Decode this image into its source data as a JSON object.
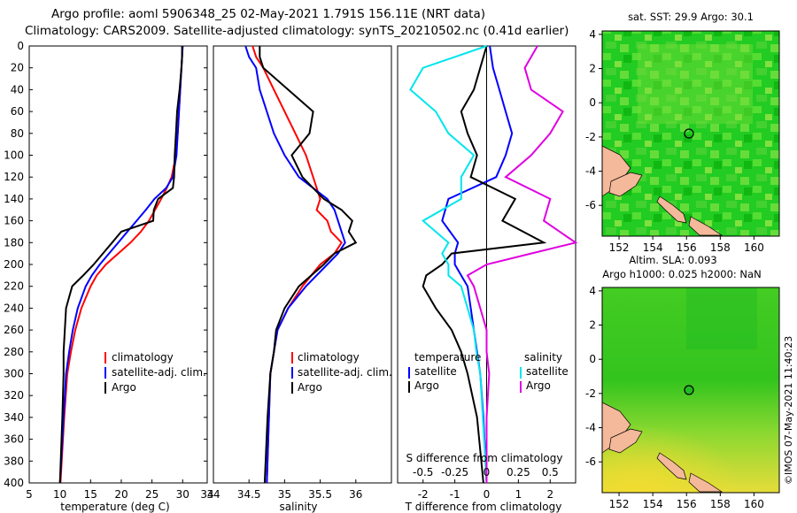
{
  "header": {
    "line1": "Argo profile: aoml 5906348_25 02-May-2021 1.791S 156.11E (NRT data)",
    "line2": "Climatology: CARS2009. Satellite-adjusted climatology: synTS_20210502.nc (0.41d earlier)"
  },
  "footer": {
    "stamp": "©IMOS 07-May-2021 11:40:23"
  },
  "colors": {
    "climatology": "#ff0000",
    "satellite": "#0000ff",
    "argo": "#000000",
    "sat_diff": "#00e5ee",
    "argo_sal_diff": "#e000e0",
    "land": "#f4b89a"
  },
  "chart_data": [
    {
      "type": "line",
      "title": "",
      "xlabel": "temperature (deg C)",
      "ylabel": "",
      "xlim": [
        5,
        34
      ],
      "ylim": [
        400,
        0
      ],
      "xticks": [
        5,
        10,
        15,
        20,
        25,
        30,
        34
      ],
      "yticks": [
        0,
        20,
        40,
        60,
        80,
        100,
        120,
        140,
        160,
        180,
        200,
        220,
        240,
        260,
        280,
        300,
        320,
        340,
        360,
        380,
        400
      ],
      "legend": [
        "climatology",
        "satellite-adj. clim.",
        "Argo"
      ],
      "depth": [
        0,
        10,
        20,
        40,
        60,
        80,
        100,
        120,
        130,
        140,
        150,
        160,
        170,
        180,
        190,
        200,
        210,
        220,
        240,
        260,
        280,
        300,
        340,
        400
      ],
      "series": [
        {
          "name": "climatology",
          "values": [
            30.0,
            29.9,
            29.8,
            29.6,
            29.4,
            29.2,
            28.9,
            28.2,
            27.4,
            26.5,
            25.5,
            24.5,
            23.2,
            21.5,
            19.5,
            17.5,
            16.0,
            15.0,
            13.5,
            12.5,
            11.8,
            11.2,
            10.7,
            10.1
          ]
        },
        {
          "name": "satellite-adj. clim.",
          "values": [
            30.0,
            29.9,
            29.8,
            29.6,
            29.4,
            29.2,
            29.0,
            28.4,
            27.3,
            25.4,
            24.0,
            22.5,
            21.0,
            19.5,
            18.0,
            16.5,
            15.2,
            14.2,
            12.9,
            12.1,
            11.5,
            11.0,
            10.6,
            10.0
          ]
        },
        {
          "name": "Argo",
          "values": [
            29.9,
            29.9,
            29.8,
            29.5,
            29.1,
            28.9,
            28.7,
            28.6,
            28.4,
            26.0,
            25.3,
            25.2,
            20.0,
            18.5,
            17.0,
            15.5,
            13.8,
            12.0,
            11.0,
            10.8,
            10.6,
            10.6,
            10.4,
            10.0
          ]
        }
      ]
    },
    {
      "type": "line",
      "title": "",
      "xlabel": "salinity",
      "ylabel": "",
      "xlim": [
        34,
        36.5
      ],
      "ylim": [
        400,
        0
      ],
      "xticks": [
        34,
        34.5,
        35,
        35.5,
        36
      ],
      "legend": [
        "climatology",
        "satellite-adj. clim.",
        "Argo"
      ],
      "depth": [
        0,
        10,
        20,
        40,
        60,
        80,
        100,
        120,
        140,
        150,
        160,
        170,
        180,
        190,
        200,
        220,
        240,
        260,
        280,
        300,
        340,
        400
      ],
      "series": [
        {
          "name": "climatology",
          "values": [
            34.55,
            34.6,
            34.7,
            34.85,
            35.0,
            35.15,
            35.3,
            35.4,
            35.5,
            35.45,
            35.6,
            35.65,
            35.8,
            35.7,
            35.5,
            35.25,
            35.05,
            34.9,
            34.85,
            34.8,
            34.78,
            34.75
          ]
        },
        {
          "name": "satellite-adj. clim.",
          "values": [
            34.45,
            34.5,
            34.6,
            34.65,
            34.75,
            34.85,
            35.0,
            35.2,
            35.6,
            35.7,
            35.75,
            35.8,
            35.85,
            35.75,
            35.6,
            35.3,
            35.05,
            34.9,
            34.85,
            34.8,
            34.78,
            34.75
          ]
        },
        {
          "name": "Argo",
          "values": [
            34.65,
            34.65,
            34.7,
            35.05,
            35.4,
            35.35,
            35.1,
            35.25,
            35.55,
            35.8,
            35.95,
            35.9,
            36.0,
            35.7,
            35.55,
            35.2,
            35.0,
            34.88,
            34.85,
            34.8,
            34.76,
            34.72
          ]
        }
      ]
    },
    {
      "type": "line",
      "title": "",
      "xlabel": "T difference from climatology",
      "ylabel": "",
      "xlim": [
        -2.8,
        2.8
      ],
      "ylim": [
        400,
        0
      ],
      "xticks": [
        -2,
        -1,
        0,
        1,
        2
      ],
      "secondary_xlabel": "S difference from climatology",
      "secondary_xticks": [
        "-0.5",
        "-0.25",
        "0",
        "0.25",
        "0.5"
      ],
      "legend": {
        "temperature": [
          "satellite",
          "Argo"
        ],
        "salinity": [
          "satellite",
          "Argo"
        ]
      },
      "depth": [
        0,
        20,
        40,
        60,
        80,
        100,
        120,
        140,
        160,
        180,
        190,
        200,
        210,
        220,
        240,
        260,
        280,
        300,
        340,
        400
      ],
      "series": [
        {
          "name": "temperature satellite",
          "values": [
            0.1,
            0.2,
            0.4,
            0.6,
            0.8,
            0.6,
            0.3,
            -1.2,
            -1.4,
            -0.9,
            -1.0,
            -1.0,
            -0.8,
            -0.6,
            -0.5,
            -0.4,
            -0.3,
            -0.2,
            -0.1,
            0.0
          ]
        },
        {
          "name": "temperature Argo",
          "values": [
            0.0,
            -0.2,
            -0.4,
            -0.8,
            -0.6,
            -0.3,
            -0.5,
            0.9,
            0.5,
            1.8,
            -1.1,
            -1.4,
            -1.9,
            -2.0,
            -1.6,
            -1.1,
            -0.8,
            -0.6,
            -0.3,
            -0.1
          ]
        },
        {
          "name": "salinity satellite",
          "values": [
            0.0,
            -0.5,
            -0.6,
            -0.4,
            -0.3,
            -0.1,
            -0.2,
            -0.2,
            -0.5,
            -0.3,
            -0.35,
            -0.3,
            -0.3,
            -0.2,
            -0.15,
            -0.1,
            -0.08,
            -0.05,
            -0.03,
            0.0
          ]
        },
        {
          "name": "salinity Argo",
          "values": [
            0.4,
            0.3,
            0.35,
            0.6,
            0.5,
            0.35,
            0.15,
            0.5,
            0.45,
            0.7,
            0.35,
            0.0,
            -0.15,
            -0.1,
            -0.05,
            0.0,
            0.0,
            0.02,
            0.0,
            0.0
          ]
        }
      ]
    },
    {
      "type": "heatmap",
      "title": "sat. SST: 29.9 Argo: 30.1",
      "xticks": [
        152,
        154,
        156,
        158,
        160
      ],
      "yticks": [
        4,
        2,
        0,
        -2,
        -4,
        -6
      ],
      "xlim": [
        151,
        161.5
      ],
      "ylim": [
        -7.8,
        4.2
      ],
      "float_lon": 156.11,
      "float_lat": -1.791
    },
    {
      "type": "heatmap",
      "title_lines": [
        "Altim. SLA: 0.093",
        "Argo h1000: 0.025 h2000: NaN"
      ],
      "xticks": [
        152,
        154,
        156,
        158,
        160
      ],
      "yticks": [
        4,
        2,
        0,
        -2,
        -4,
        -6
      ],
      "xlim": [
        151,
        161.5
      ],
      "ylim": [
        -7.8,
        4.2
      ],
      "float_lon": 156.11,
      "float_lat": -1.791
    }
  ]
}
